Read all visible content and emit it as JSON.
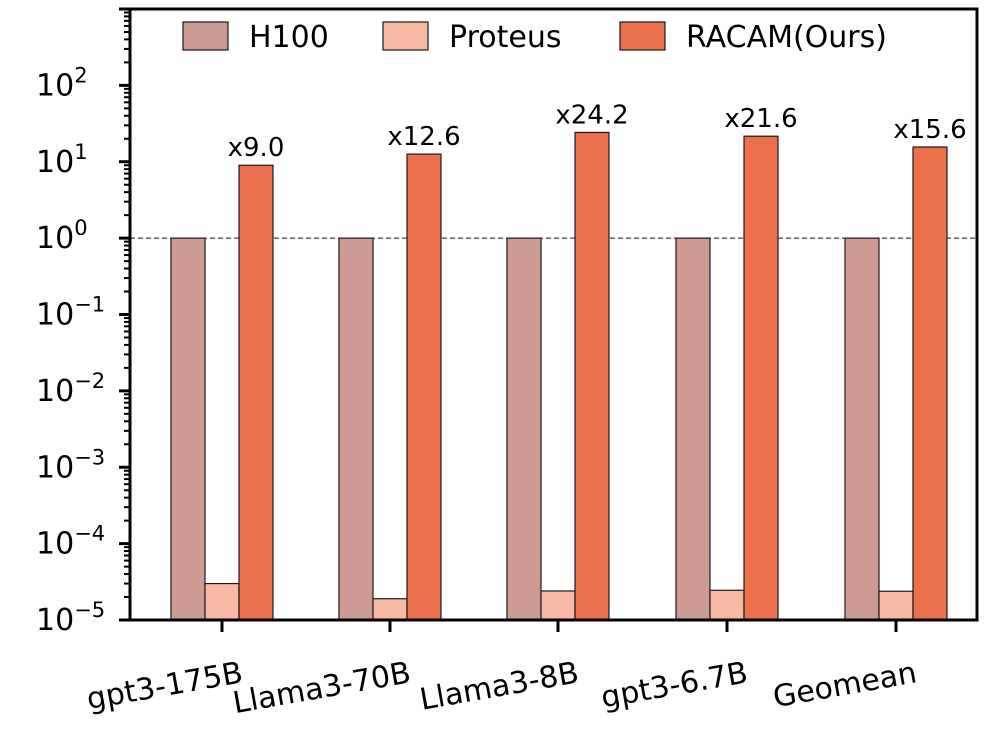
{
  "chart_data": {
    "type": "bar",
    "title": "",
    "xlabel": "",
    "ylabel": "",
    "yscale": "log",
    "ylim": [
      1e-05,
      1000
    ],
    "categories": [
      "gpt3-175B",
      "Llama3-70B",
      "Llama3-8B",
      "gpt3-6.7B",
      "Geomean"
    ],
    "series": [
      {
        "name": "H100",
        "color": "#cc9993",
        "values": [
          1,
          1,
          1,
          1,
          1
        ]
      },
      {
        "name": "Proteus",
        "color": "#f7b9a3",
        "values": [
          3e-05,
          1.9e-05,
          2.4e-05,
          2.45e-05,
          2.38e-05
        ]
      },
      {
        "name": "RACAM(Ours)",
        "color": "#ec704b",
        "values": [
          9.0,
          12.6,
          24.2,
          21.6,
          15.6
        ]
      }
    ],
    "data_labels": [
      "x9.0",
      "x12.6",
      "x24.2",
      "x21.6",
      "x15.6"
    ],
    "yticks": [
      {
        "base": "10",
        "exp": "2"
      },
      {
        "base": "10",
        "exp": "1"
      },
      {
        "base": "10",
        "exp": "0"
      },
      {
        "base": "10",
        "exp": "−1"
      },
      {
        "base": "10",
        "exp": "−2"
      },
      {
        "base": "10",
        "exp": "−3"
      },
      {
        "base": "10",
        "exp": "−4"
      },
      {
        "base": "10",
        "exp": "−5"
      }
    ],
    "reference_line": 1,
    "legend_position": "top",
    "grid": false
  }
}
